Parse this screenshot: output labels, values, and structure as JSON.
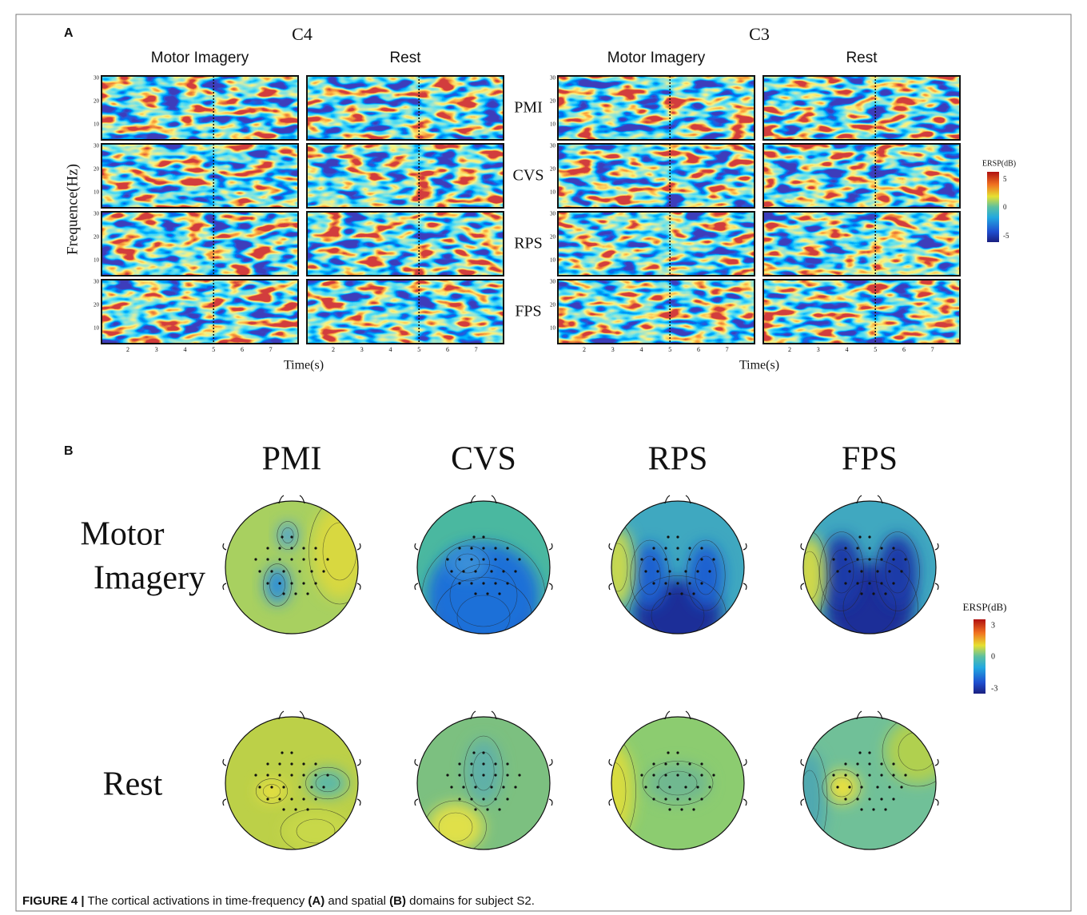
{
  "panel_a": {
    "label": "A",
    "channels": [
      {
        "name": "C4",
        "conditions": [
          "Motor Imagery",
          "Rest"
        ]
      },
      {
        "name": "C3",
        "conditions": [
          "Motor Imagery",
          "Rest"
        ]
      }
    ],
    "rows": [
      "PMI",
      "CVS",
      "RPS",
      "FPS"
    ],
    "y_axis_label": "Frequence(Hz)",
    "x_axis_label": "Time(s)",
    "y_ticks": [
      "30",
      "20",
      "10"
    ],
    "x_ticks": [
      "2",
      "3",
      "4",
      "5",
      "6",
      "7"
    ],
    "colorbar": {
      "label": "ERSP(dB)",
      "ticks": [
        "5",
        "0",
        "-5"
      ]
    }
  },
  "panel_b": {
    "label": "B",
    "columns": [
      "PMI",
      "CVS",
      "RPS",
      "FPS"
    ],
    "rows": [
      {
        "lines": [
          "Motor",
          "Imagery"
        ]
      },
      {
        "lines": [
          "Rest"
        ]
      }
    ],
    "colorbar": {
      "label": "ERSP(dB)",
      "ticks": [
        "3",
        "0",
        "-3"
      ]
    }
  },
  "caption": {
    "figure": "FIGURE 4 |",
    "parts": [
      "The cortical activations in time-frequency",
      "(A)",
      "and spatial",
      "(B)",
      "domains for subject S2."
    ]
  }
}
